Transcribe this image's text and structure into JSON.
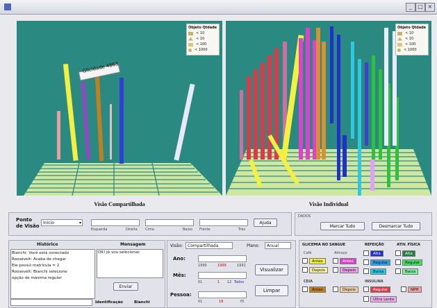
{
  "window": {
    "title": ""
  },
  "left_view": {
    "caption": "Visão Compartilhada",
    "tooltip": "Glicidade 4863",
    "legend": {
      "title": "Objeto Qtdade",
      "items": [
        "< 10",
        "< 10",
        "< 100",
        "< 1000"
      ]
    }
  },
  "right_view": {
    "caption": "Visão Individual",
    "legend": {
      "title": "Objeto Qtdade",
      "items": [
        "< 10",
        "< 10",
        "< 100",
        "< 1000"
      ]
    }
  },
  "viewpoint": {
    "label": "Ponto de Visão",
    "select_value": "Início",
    "slider_labels": [
      "Esquerda",
      "Direita",
      "Cima",
      "Baixo",
      "Frente",
      "Trás"
    ],
    "help_button": "Ajuda"
  },
  "dados": {
    "title": "DADOS",
    "mark_all": "Marcar Tudo",
    "unmark_all": "Desmarcar Tudo"
  },
  "history": {
    "title": "Histórico",
    "lines": [
      "Bianchi: Você está conectado",
      "Roosevelt: Acaba de chegar",
      "Ele possui matrícula = 2",
      "Roosevelt: Bianchi selecione",
      "opção de máxima regular"
    ],
    "footer": [
      "Identificação",
      "Bianchi"
    ]
  },
  "messages": {
    "title": "Mensagem",
    "text": "OK! Já vou selecionar.",
    "send_button": "Enviar"
  },
  "controls": {
    "visao_label": "Visão:",
    "visao_value": "Compartilhada",
    "plano_label": "Plano:",
    "plano_value": "Anual",
    "ano": {
      "label": "Ano:",
      "ticks": [
        "1990",
        "1999",
        "1991"
      ]
    },
    "mes": {
      "label": "Mês:",
      "ticks": [
        "01",
        "1",
        "12",
        "Todos"
      ]
    },
    "pessoa": {
      "label": "Pessoa:",
      "ticks": [
        "01",
        "18",
        "70"
      ]
    },
    "visualizar_button": "Visualizar",
    "limpar_button": "Limpar"
  },
  "filters": {
    "glicemia": "GLICEMIA NO SANGUE",
    "refeicao": "REFEIÇÃO",
    "atividade": "ATIV. FÍSICA",
    "cafe": "Café",
    "almoco": "Almoço",
    "ceia": "CEIA",
    "insulina": "INSULINA",
    "antes": "Antes",
    "depois": "Depois",
    "alta": "Alta",
    "regular": "Regular",
    "baixa": "Baixa",
    "nph": "NPH",
    "ultra_lente": "Ultra Lente"
  }
}
